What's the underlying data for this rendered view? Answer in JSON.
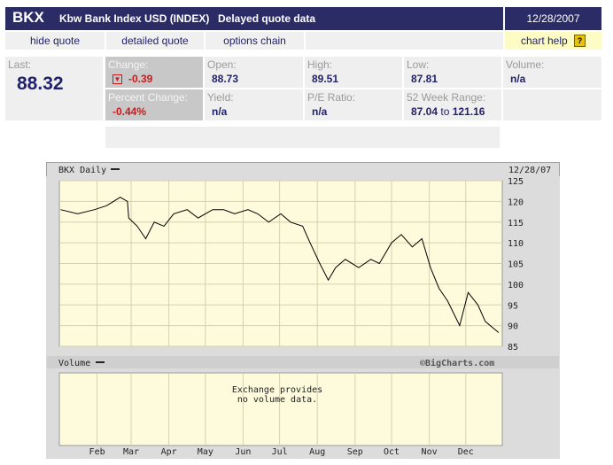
{
  "header": {
    "symbol": "BKX",
    "name": "Kbw Bank Index USD (INDEX)",
    "delayed": "Delayed quote data",
    "date": "12/28/2007"
  },
  "links": {
    "hide_quote": "hide quote",
    "detailed_quote": "detailed quote",
    "options_chain": "options chain",
    "chart_help": "chart help",
    "help_icon": "?"
  },
  "quote": {
    "last_label": "Last:",
    "last": "88.32",
    "change_label": "Change:",
    "change": "-0.39",
    "pct_label": "Percent Change:",
    "pct": "-0.44%",
    "open_label": "Open:",
    "open": "88.73",
    "high_label": "High:",
    "high": "89.51",
    "low_label": "Low:",
    "low": "87.81",
    "volume_label": "Volume:",
    "volume": "n/a",
    "yield_label": "Yield:",
    "yield": "n/a",
    "pe_label": "P/E Ratio:",
    "pe": "n/a",
    "range_label": "52 Week Range:",
    "range_low": "87.04",
    "range_to": "to",
    "range_high": "121.16"
  },
  "chart_data": {
    "type": "line",
    "title": "BKX Daily",
    "date": "12/28/07",
    "ylabel_ticks": [
      85,
      90,
      95,
      100,
      105,
      110,
      115,
      120,
      125
    ],
    "ylim": [
      85,
      125
    ],
    "months": [
      "Feb",
      "Mar",
      "Apr",
      "May",
      "Jun",
      "Jul",
      "Aug",
      "Sep",
      "Oct",
      "Nov",
      "Dec"
    ],
    "x": [
      "2007-01-02",
      "2007-01-16",
      "2007-01-30",
      "2007-02-09",
      "2007-02-20",
      "2007-02-26",
      "2007-02-27",
      "2007-03-06",
      "2007-03-13",
      "2007-03-20",
      "2007-03-28",
      "2007-04-05",
      "2007-04-16",
      "2007-04-25",
      "2007-05-07",
      "2007-05-16",
      "2007-05-25",
      "2007-06-05",
      "2007-06-13",
      "2007-06-22",
      "2007-07-02",
      "2007-07-10",
      "2007-07-20",
      "2007-07-26",
      "2007-08-03",
      "2007-08-10",
      "2007-08-16",
      "2007-08-24",
      "2007-09-04",
      "2007-09-14",
      "2007-09-21",
      "2007-10-01",
      "2007-10-09",
      "2007-10-18",
      "2007-10-26",
      "2007-11-02",
      "2007-11-09",
      "2007-11-16",
      "2007-11-26",
      "2007-12-03",
      "2007-12-11",
      "2007-12-17",
      "2007-12-28"
    ],
    "y": [
      118,
      117,
      118,
      119,
      121,
      120,
      116,
      114,
      111,
      115,
      114,
      117,
      118,
      116,
      118,
      118,
      117,
      118,
      117,
      115,
      117,
      115,
      114,
      110,
      105,
      101,
      104,
      106,
      104,
      106,
      105,
      110,
      112,
      109,
      111,
      104,
      99,
      96,
      90,
      98,
      95,
      91,
      88.32
    ],
    "volume_label": "Volume",
    "volume_note": [
      "Exchange provides",
      "no volume data."
    ],
    "credit": "©BigCharts.com",
    "colors": {
      "plot_bg": "#fdfbdb",
      "frame": "#cfcfcf",
      "line": "#000000"
    }
  }
}
